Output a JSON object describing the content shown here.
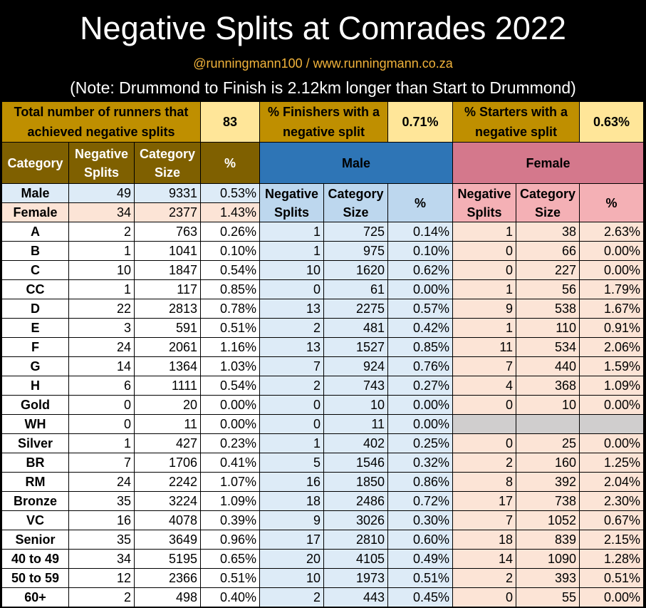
{
  "header": {
    "title": "Negative Splits at Comrades 2022",
    "subtitle": "@runningmann100 / www.runningmann.co.za",
    "note": "(Note: Drummond to Finish is 2.12km longer than Start to Drummond)"
  },
  "summary": {
    "total_label": "Total number of runners that achieved negative splits",
    "total_value": "83",
    "finishers_label": "% Finishers with a negative split",
    "finishers_value": "0.71%",
    "starters_label": "% Starters with a negative split",
    "starters_value": "0.63%"
  },
  "headers": {
    "category": "Category",
    "neg_splits": "Negative Splits",
    "category_size": "Category Size",
    "pct": "%",
    "male": "Male",
    "female": "Female"
  },
  "gender_rows": [
    {
      "label": "Male",
      "neg": "49",
      "size": "9331",
      "pct": "0.53%"
    },
    {
      "label": "Female",
      "neg": "34",
      "size": "2377",
      "pct": "1.43%"
    }
  ],
  "rows": [
    {
      "cat": "A",
      "neg": "2",
      "size": "763",
      "pct": "0.26%",
      "m_neg": "1",
      "m_size": "725",
      "m_pct": "0.14%",
      "f_neg": "1",
      "f_size": "38",
      "f_pct": "2.63%"
    },
    {
      "cat": "B",
      "neg": "1",
      "size": "1041",
      "pct": "0.10%",
      "m_neg": "1",
      "m_size": "975",
      "m_pct": "0.10%",
      "f_neg": "0",
      "f_size": "66",
      "f_pct": "0.00%"
    },
    {
      "cat": "C",
      "neg": "10",
      "size": "1847",
      "pct": "0.54%",
      "m_neg": "10",
      "m_size": "1620",
      "m_pct": "0.62%",
      "f_neg": "0",
      "f_size": "227",
      "f_pct": "0.00%"
    },
    {
      "cat": "CC",
      "neg": "1",
      "size": "117",
      "pct": "0.85%",
      "m_neg": "0",
      "m_size": "61",
      "m_pct": "0.00%",
      "f_neg": "1",
      "f_size": "56",
      "f_pct": "1.79%"
    },
    {
      "cat": "D",
      "neg": "22",
      "size": "2813",
      "pct": "0.78%",
      "m_neg": "13",
      "m_size": "2275",
      "m_pct": "0.57%",
      "f_neg": "9",
      "f_size": "538",
      "f_pct": "1.67%"
    },
    {
      "cat": "E",
      "neg": "3",
      "size": "591",
      "pct": "0.51%",
      "m_neg": "2",
      "m_size": "481",
      "m_pct": "0.42%",
      "f_neg": "1",
      "f_size": "110",
      "f_pct": "0.91%"
    },
    {
      "cat": "F",
      "neg": "24",
      "size": "2061",
      "pct": "1.16%",
      "m_neg": "13",
      "m_size": "1527",
      "m_pct": "0.85%",
      "f_neg": "11",
      "f_size": "534",
      "f_pct": "2.06%"
    },
    {
      "cat": "G",
      "neg": "14",
      "size": "1364",
      "pct": "1.03%",
      "m_neg": "7",
      "m_size": "924",
      "m_pct": "0.76%",
      "f_neg": "7",
      "f_size": "440",
      "f_pct": "1.59%"
    },
    {
      "cat": "H",
      "neg": "6",
      "size": "1111",
      "pct": "0.54%",
      "m_neg": "2",
      "m_size": "743",
      "m_pct": "0.27%",
      "f_neg": "4",
      "f_size": "368",
      "f_pct": "1.09%"
    },
    {
      "cat": "Gold",
      "neg": "0",
      "size": "20",
      "pct": "0.00%",
      "m_neg": "0",
      "m_size": "10",
      "m_pct": "0.00%",
      "f_neg": "0",
      "f_size": "10",
      "f_pct": "0.00%"
    },
    {
      "cat": "WH",
      "neg": "0",
      "size": "11",
      "pct": "0.00%",
      "m_neg": "0",
      "m_size": "11",
      "m_pct": "0.00%",
      "f_neg": "",
      "f_size": "",
      "f_pct": "",
      "f_gray": true
    },
    {
      "cat": "Silver",
      "neg": "1",
      "size": "427",
      "pct": "0.23%",
      "m_neg": "1",
      "m_size": "402",
      "m_pct": "0.25%",
      "f_neg": "0",
      "f_size": "25",
      "f_pct": "0.00%"
    },
    {
      "cat": "BR",
      "neg": "7",
      "size": "1706",
      "pct": "0.41%",
      "m_neg": "5",
      "m_size": "1546",
      "m_pct": "0.32%",
      "f_neg": "2",
      "f_size": "160",
      "f_pct": "1.25%"
    },
    {
      "cat": "RM",
      "neg": "24",
      "size": "2242",
      "pct": "1.07%",
      "m_neg": "16",
      "m_size": "1850",
      "m_pct": "0.86%",
      "f_neg": "8",
      "f_size": "392",
      "f_pct": "2.04%"
    },
    {
      "cat": "Bronze",
      "neg": "35",
      "size": "3224",
      "pct": "1.09%",
      "m_neg": "18",
      "m_size": "2486",
      "m_pct": "0.72%",
      "f_neg": "17",
      "f_size": "738",
      "f_pct": "2.30%"
    },
    {
      "cat": "VC",
      "neg": "16",
      "size": "4078",
      "pct": "0.39%",
      "m_neg": "9",
      "m_size": "3026",
      "m_pct": "0.30%",
      "f_neg": "7",
      "f_size": "1052",
      "f_pct": "0.67%"
    },
    {
      "cat": "Senior",
      "neg": "35",
      "size": "3649",
      "pct": "0.96%",
      "m_neg": "17",
      "m_size": "2810",
      "m_pct": "0.60%",
      "f_neg": "18",
      "f_size": "839",
      "f_pct": "2.15%"
    },
    {
      "cat": "40 to 49",
      "neg": "34",
      "size": "5195",
      "pct": "0.65%",
      "m_neg": "20",
      "m_size": "4105",
      "m_pct": "0.49%",
      "f_neg": "14",
      "f_size": "1090",
      "f_pct": "1.28%"
    },
    {
      "cat": "50 to 59",
      "neg": "12",
      "size": "2366",
      "pct": "0.51%",
      "m_neg": "10",
      "m_size": "1973",
      "m_pct": "0.51%",
      "f_neg": "2",
      "f_size": "393",
      "f_pct": "0.51%"
    },
    {
      "cat": "60+",
      "neg": "2",
      "size": "498",
      "pct": "0.40%",
      "m_neg": "2",
      "m_size": "443",
      "m_pct": "0.45%",
      "f_neg": "0",
      "f_size": "55",
      "f_pct": "0.00%"
    }
  ]
}
